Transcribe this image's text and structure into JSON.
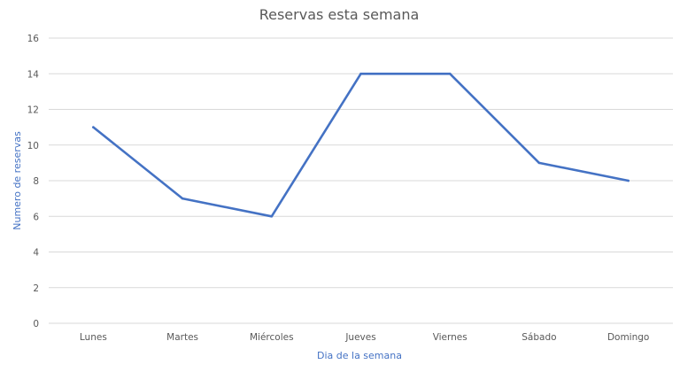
{
  "chart_data": {
    "type": "line",
    "title": "Reservas esta semana",
    "xlabel": "Dia de la semana",
    "ylabel": "Numero de reservas",
    "categories": [
      "Lunes",
      "Martes",
      "Miércoles",
      "Jueves",
      "Viernes",
      "Sábado",
      "Domingo"
    ],
    "series": [
      {
        "values": [
          11,
          7,
          6,
          14,
          14,
          9,
          8
        ],
        "color": "#4472c4"
      }
    ],
    "ylim": [
      0,
      16
    ],
    "yticks": [
      0,
      2,
      4,
      6,
      8,
      10,
      12,
      14,
      16
    ],
    "grid": true,
    "axis_label_color": "#4472c4",
    "tick_color": "#595959",
    "title_color": "#595959"
  }
}
